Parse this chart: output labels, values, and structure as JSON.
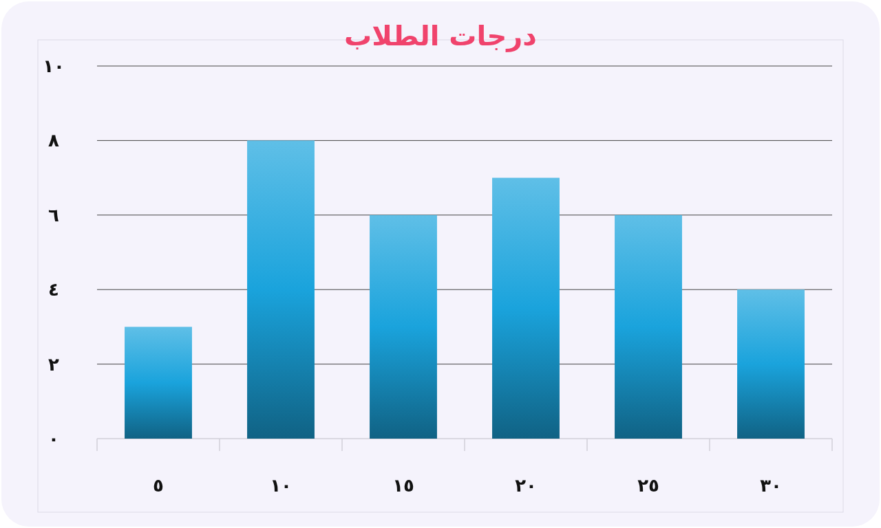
{
  "chart_data": {
    "type": "bar",
    "title": "درجات الطلاب",
    "categories": [
      "٥",
      "١٠",
      "١٥",
      "٢٠",
      "٢٥",
      "٣٠"
    ],
    "values": [
      3,
      8,
      6,
      7,
      6,
      4
    ],
    "color": "#1aa3dc",
    "ylim": [
      0,
      10
    ],
    "yticks": [
      {
        "value": 0,
        "label": "٠"
      },
      {
        "value": 2,
        "label": "٢"
      },
      {
        "value": 4,
        "label": "٤"
      },
      {
        "value": 6,
        "label": "٦"
      },
      {
        "value": 8,
        "label": "٨"
      },
      {
        "value": 10,
        "label": "١٠"
      }
    ],
    "grid": "y"
  }
}
